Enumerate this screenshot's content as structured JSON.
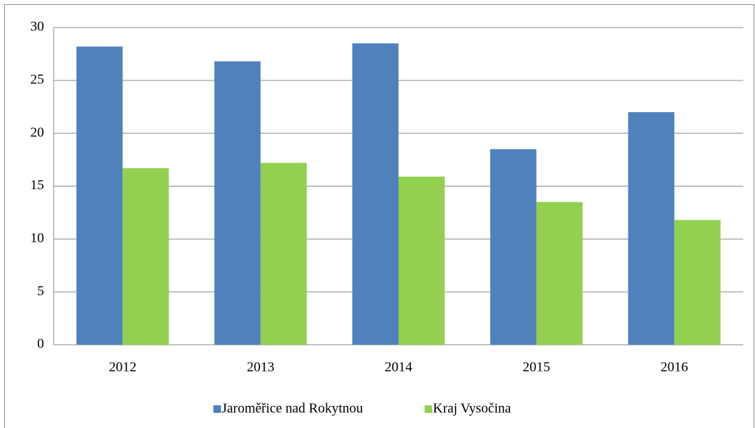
{
  "chart_data": {
    "type": "bar",
    "categories": [
      "2012",
      "2013",
      "2014",
      "2015",
      "2016"
    ],
    "series": [
      {
        "name": "Jaroměřice nad Rokytnou",
        "color": "#4f81bd",
        "values": [
          28.2,
          26.8,
          28.5,
          18.5,
          22.0
        ]
      },
      {
        "name": "Kraj Vysočina",
        "color": "#92d050",
        "values": [
          16.7,
          17.2,
          15.9,
          13.5,
          11.8
        ]
      }
    ],
    "ylim": [
      0,
      30
    ],
    "yticks": [
      0,
      5,
      10,
      15,
      20,
      25,
      30
    ],
    "grid": true,
    "legend": "bottom"
  }
}
